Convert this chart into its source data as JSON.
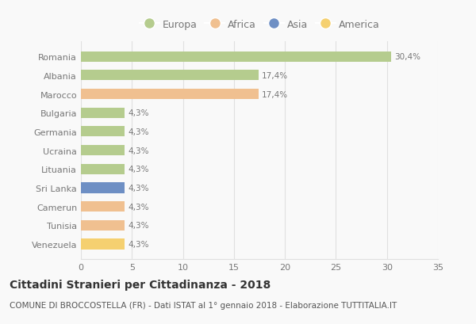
{
  "countries": [
    "Romania",
    "Albania",
    "Marocco",
    "Bulgaria",
    "Germania",
    "Ucraina",
    "Lituania",
    "Sri Lanka",
    "Camerun",
    "Tunisia",
    "Venezuela"
  ],
  "values": [
    30.4,
    17.4,
    17.4,
    4.3,
    4.3,
    4.3,
    4.3,
    4.3,
    4.3,
    4.3,
    4.3
  ],
  "labels": [
    "30,4%",
    "17,4%",
    "17,4%",
    "4,3%",
    "4,3%",
    "4,3%",
    "4,3%",
    "4,3%",
    "4,3%",
    "4,3%",
    "4,3%"
  ],
  "continents": [
    "Europa",
    "Europa",
    "Africa",
    "Europa",
    "Europa",
    "Europa",
    "Europa",
    "Asia",
    "Africa",
    "Africa",
    "America"
  ],
  "colors": {
    "Europa": "#b5cc8e",
    "Africa": "#f0c090",
    "Asia": "#6e8fc4",
    "America": "#f5d070"
  },
  "legend_order": [
    "Europa",
    "Africa",
    "Asia",
    "America"
  ],
  "xlim": [
    0,
    35
  ],
  "xticks": [
    0,
    5,
    10,
    15,
    20,
    25,
    30,
    35
  ],
  "title": "Cittadini Stranieri per Cittadinanza - 2018",
  "subtitle": "COMUNE DI BROCCOSTELLA (FR) - Dati ISTAT al 1° gennaio 2018 - Elaborazione TUTTITALIA.IT",
  "title_fontsize": 10,
  "subtitle_fontsize": 7.5,
  "label_fontsize": 7.5,
  "tick_fontsize": 8,
  "legend_fontsize": 9,
  "background_color": "#f9f9f9",
  "plot_bg_color": "#f9f9f9",
  "grid_color": "#e0e0e0",
  "bar_height": 0.55,
  "text_color": "#777777"
}
